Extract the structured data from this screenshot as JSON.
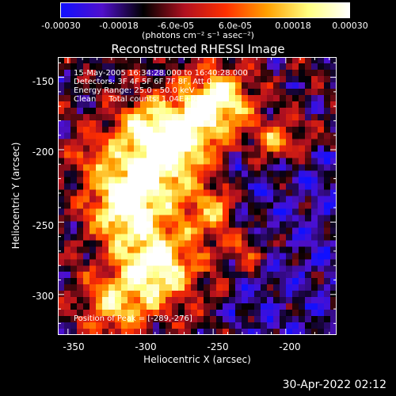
{
  "colorbar": {
    "ticks": [
      "-0.00030",
      "-0.00018",
      "-6.0e-05",
      "6.0e-05",
      "0.00018",
      "0.00030"
    ],
    "units": "(photons cm⁻² s⁻¹ asec⁻²)",
    "colors": [
      "#1010ff",
      "#5010cc",
      "#000000",
      "#b01020",
      "#ff3000",
      "#ffa000",
      "#ffff80",
      "#ffffff"
    ]
  },
  "chart_data": {
    "type": "heatmap",
    "title": "Reconstructed RHESSI Image",
    "xlabel": "Heliocentric X (arcsec)",
    "ylabel": "Heliocentric Y (arcsec)",
    "xlim": [
      -357,
      -165
    ],
    "ylim": [
      -328,
      -136
    ],
    "xticks": [
      -350,
      -300,
      -250,
      -200
    ],
    "yticks": [
      -150,
      -200,
      -250,
      -300
    ],
    "color_range": [
      -0.0003,
      0.0003
    ],
    "annotations": {
      "line1": "15-May-2005 16:34:28.000 to 16:40:28.000",
      "line2": "Detectors: 3F 4F 5F 6F 7F 8F, Att 0",
      "line3": "Energy Range: 25.0 - 50.0 keV",
      "line4": "Clean     Total counts: 1.04E+04",
      "peak": "Position of Peak = [-289,-276]"
    },
    "peak": [
      -289,
      -276
    ]
  },
  "footer": {
    "timestamp": "30-Apr-2022 02:12"
  }
}
